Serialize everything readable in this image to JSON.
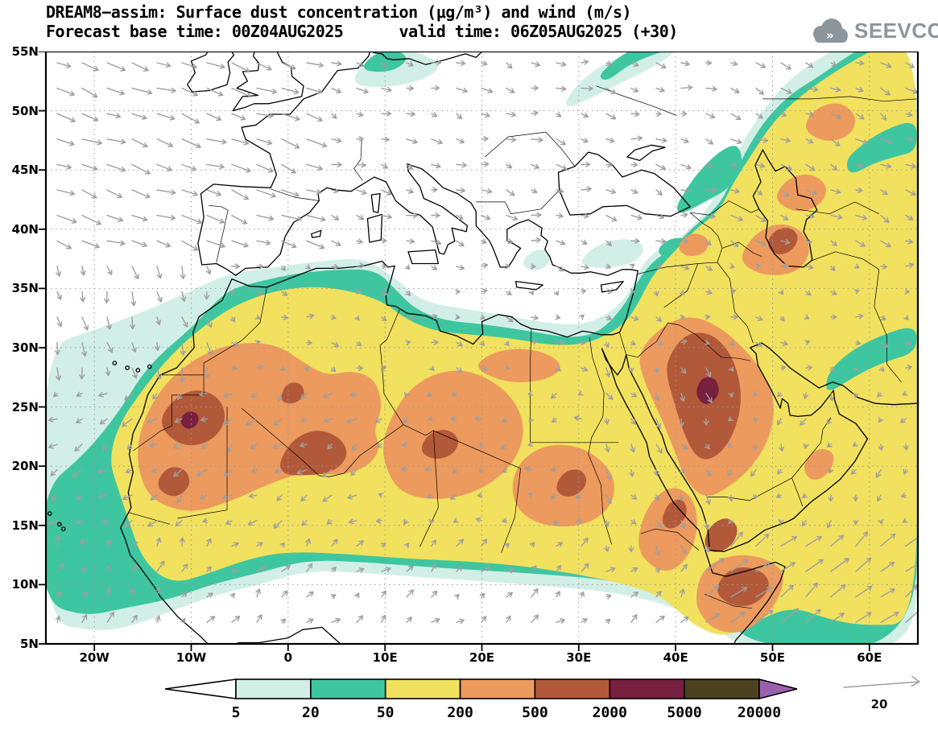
{
  "header": {
    "title_line1": "DREAM8−assim: Surface dust concentration (μg/m³) and wind (m/s)",
    "title_line2": "Forecast base time: 00Z04AUG2025      valid time: 06Z05AUG2025 (+30)",
    "logo_text": "SEEVCCC"
  },
  "axes": {
    "lat_labels": [
      "55N",
      "50N",
      "45N",
      "40N",
      "35N",
      "30N",
      "25N",
      "20N",
      "15N",
      "10N",
      "5N"
    ],
    "lon_labels": [
      "20W",
      "10W",
      "0",
      "10E",
      "20E",
      "30E",
      "40E",
      "50E",
      "60E"
    ],
    "lon_values": [
      -20,
      -10,
      0,
      10,
      20,
      30,
      40,
      50,
      60
    ]
  },
  "colorbar": {
    "levels": [
      "5",
      "20",
      "50",
      "200",
      "500",
      "2000",
      "5000",
      "20000"
    ],
    "colors": {
      "below": "#ffffff",
      "c5_20": "#d2efe7",
      "c20_50": "#3ec6a0",
      "c50_200": "#f1e15e",
      "c200_500": "#ec9a5e",
      "c500_2000": "#b2593a",
      "c2000_5000": "#77203f",
      "c5000_20000": "#4c4220",
      "above": "#9c61ae"
    }
  },
  "wind": {
    "reference_label": "20",
    "arrow_color": "#9f9f9f"
  },
  "map_frame": {
    "line_color": "#000000",
    "grid_color": "#999999",
    "logo_color": "#8d959c"
  }
}
